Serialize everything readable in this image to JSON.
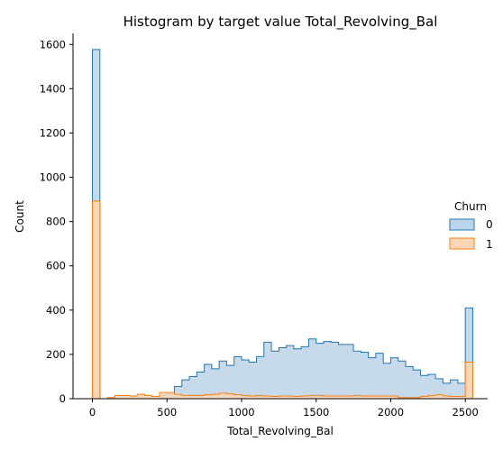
{
  "chart_data": {
    "type": "histogram",
    "title": "Histogram by target value Total_Revolving_Bal",
    "xlabel": "Total_Revolving_Bal",
    "ylabel": "Count",
    "xlim": [
      -130,
      2650
    ],
    "ylim": [
      0,
      1650
    ],
    "x_ticks": [
      0,
      500,
      1000,
      1500,
      2000,
      2500
    ],
    "y_ticks": [
      0,
      200,
      400,
      600,
      800,
      1000,
      1200,
      1400,
      1600
    ],
    "bin_width": 50,
    "bin_start": 0,
    "legend": {
      "title": "Churn",
      "placement": "center-right",
      "entries": [
        "0",
        "1"
      ]
    },
    "series": [
      {
        "name": "0",
        "fill": "#bcd4e9",
        "stroke": "#1f77b4",
        "values": [
          1577,
          0,
          0,
          0,
          0,
          0,
          0,
          0,
          0,
          15,
          22,
          55,
          85,
          100,
          120,
          155,
          135,
          170,
          150,
          190,
          175,
          165,
          190,
          255,
          215,
          230,
          240,
          225,
          235,
          270,
          250,
          258,
          255,
          245,
          245,
          215,
          210,
          185,
          205,
          160,
          185,
          170,
          145,
          130,
          105,
          110,
          90,
          70,
          85,
          70,
          410
        ]
      },
      {
        "name": "1",
        "fill": "#fdd6b5",
        "stroke": "#ff7f0e",
        "values": [
          893,
          0,
          5,
          15,
          15,
          12,
          20,
          15,
          10,
          28,
          28,
          20,
          15,
          15,
          15,
          18,
          20,
          25,
          22,
          18,
          15,
          12,
          15,
          12,
          10,
          12,
          12,
          10,
          12,
          15,
          15,
          12,
          12,
          12,
          12,
          15,
          12,
          12,
          12,
          12,
          12,
          5,
          5,
          5,
          10,
          15,
          18,
          12,
          10,
          10,
          165
        ]
      }
    ]
  }
}
